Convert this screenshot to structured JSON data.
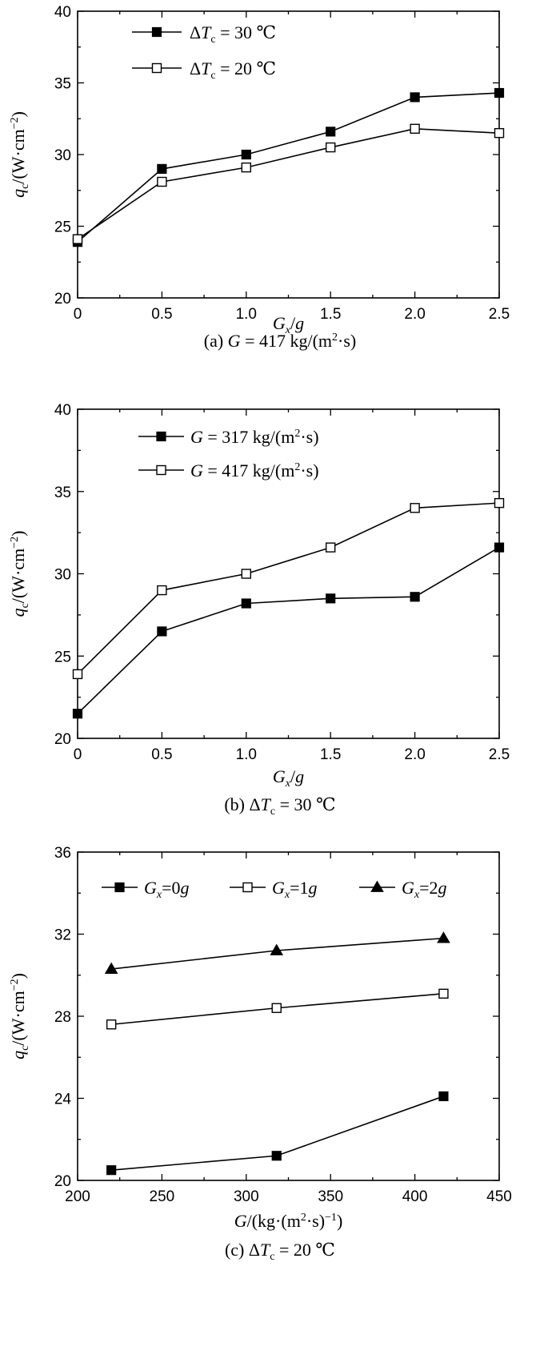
{
  "chart_data": [
    {
      "type": "line",
      "panel_id": "a",
      "caption": "(a) G = 417 kg/(m²·s)",
      "xlabel": "Gx/g",
      "ylabel": "qc/(W·cm⁻²)",
      "xlim": [
        0,
        2.5
      ],
      "ylim": [
        20,
        40
      ],
      "xticks": [
        "0",
        "0.5",
        "1.0",
        "1.5",
        "2.0",
        "2.5"
      ],
      "xtick_values": [
        0,
        0.5,
        1.0,
        1.5,
        2.0,
        2.5
      ],
      "yticks": [
        "20",
        "25",
        "30",
        "35",
        "40"
      ],
      "ytick_values": [
        20,
        25,
        30,
        35,
        40
      ],
      "legend_position": "top-left",
      "x": [
        0,
        0.5,
        1.0,
        1.5,
        2.0,
        2.5
      ],
      "series": [
        {
          "name": "ΔTc = 30 ℃",
          "marker": "filled-square",
          "values": [
            23.9,
            29.0,
            30.0,
            31.6,
            34.0,
            34.3
          ]
        },
        {
          "name": "ΔTc = 20 ℃",
          "marker": "open-square",
          "values": [
            24.1,
            28.1,
            29.1,
            30.5,
            31.8,
            31.5
          ]
        }
      ]
    },
    {
      "type": "line",
      "panel_id": "b",
      "caption": "(b) ΔTc = 30 ℃",
      "xlabel": "Gx/g",
      "ylabel": "qc/(W·cm⁻²)",
      "xlim": [
        0,
        2.5
      ],
      "ylim": [
        20,
        40
      ],
      "xticks": [
        "0",
        "0.5",
        "1.0",
        "1.5",
        "2.0",
        "2.5"
      ],
      "xtick_values": [
        0,
        0.5,
        1.0,
        1.5,
        2.0,
        2.5
      ],
      "yticks": [
        "20",
        "25",
        "30",
        "35",
        "40"
      ],
      "ytick_values": [
        20,
        25,
        30,
        35,
        40
      ],
      "legend_position": "top-left",
      "x": [
        0,
        0.5,
        1.0,
        1.5,
        2.0,
        2.5
      ],
      "series": [
        {
          "name": "G = 317 kg/(m²·s)",
          "marker": "filled-square",
          "values": [
            21.5,
            26.5,
            28.2,
            28.5,
            28.6,
            31.6
          ]
        },
        {
          "name": "G = 417 kg/(m²·s)",
          "marker": "open-square",
          "values": [
            23.9,
            29.0,
            30.0,
            31.6,
            34.0,
            34.3
          ]
        }
      ]
    },
    {
      "type": "line",
      "panel_id": "c",
      "caption": "(c) ΔTc = 20 ℃",
      "xlabel": "G/(kg·(m²·s)⁻¹)",
      "ylabel": "qc/(W·cm⁻²)",
      "xlim": [
        200,
        450
      ],
      "ylim": [
        20,
        36
      ],
      "xticks": [
        "200",
        "250",
        "300",
        "350",
        "400",
        "450"
      ],
      "xtick_values": [
        200,
        250,
        300,
        350,
        400,
        450
      ],
      "yticks": [
        "20",
        "24",
        "28",
        "32",
        "36"
      ],
      "ytick_values": [
        20,
        24,
        28,
        32,
        36
      ],
      "legend_position": "top",
      "x": [
        220,
        318,
        417
      ],
      "series": [
        {
          "name": "Gx=0g",
          "marker": "filled-square",
          "values": [
            20.5,
            21.2,
            24.1
          ]
        },
        {
          "name": "Gx=1g",
          "marker": "open-square",
          "values": [
            27.6,
            28.4,
            29.1
          ]
        },
        {
          "name": "Gx=2g",
          "marker": "filled-triangle",
          "values": [
            30.3,
            31.2,
            31.8
          ]
        }
      ]
    }
  ]
}
